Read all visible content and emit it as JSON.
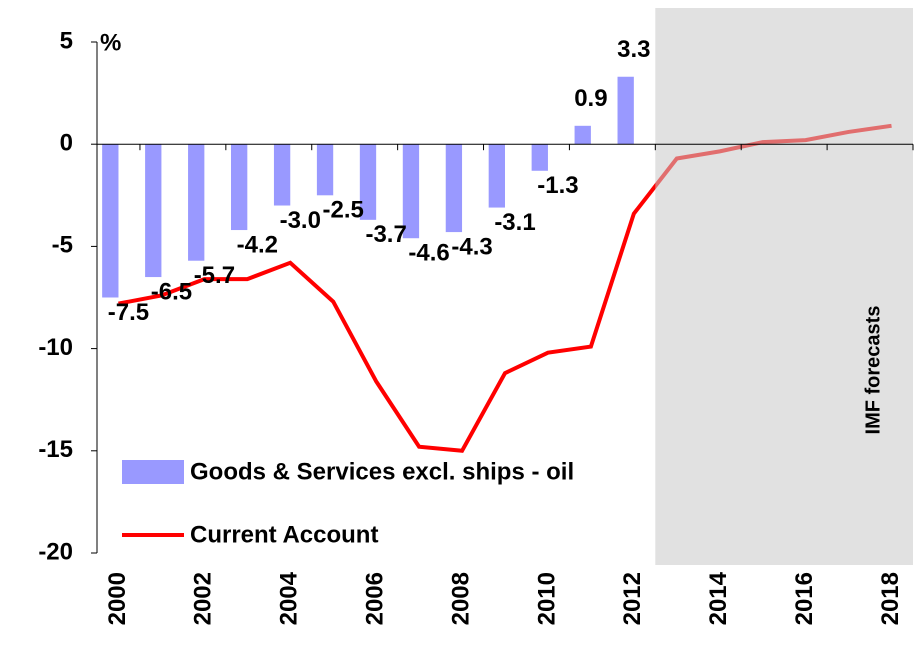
{
  "chart_data": {
    "type": "bar-line",
    "y_label": "%",
    "annotation": "IMF forecasts",
    "forecast_start": 2012.5,
    "xlim": [
      1999.5,
      2018.5
    ],
    "xticks": [
      2000,
      2002,
      2004,
      2006,
      2008,
      2010,
      2012,
      2014,
      2016,
      2018
    ],
    "ylim": [
      -20,
      5
    ],
    "yticks": [
      -20,
      -15,
      -10,
      -5,
      0,
      5
    ],
    "series": [
      {
        "name": "Goods & Services excl. ships - oil",
        "type": "bar",
        "color": "#9999ff",
        "x": [
          2000,
          2001,
          2002,
          2003,
          2004,
          2005,
          2006,
          2007,
          2008,
          2009,
          2010,
          2011,
          2012
        ],
        "values": [
          -7.5,
          -6.5,
          -5.7,
          -4.2,
          -3.0,
          -2.5,
          -3.7,
          -4.6,
          -4.3,
          -3.1,
          -1.3,
          0.9,
          3.3
        ],
        "value_labels": [
          "-7.5",
          "-6.5",
          "-5.7",
          "-4.2",
          "-3.0",
          "-2.5",
          "-3.7",
          "-4.6",
          "-4.3",
          "-3.1",
          "-1.3",
          "0.9",
          "3.3"
        ]
      },
      {
        "name": "Current Account",
        "type": "line",
        "color": "#ff0000",
        "x": [
          2000,
          2001,
          2002,
          2003,
          2004,
          2005,
          2006,
          2007,
          2008,
          2009,
          2010,
          2011,
          2012,
          2013,
          2014,
          2015,
          2016,
          2017,
          2018
        ],
        "values": [
          -7.8,
          -7.4,
          -6.6,
          -6.6,
          -5.8,
          -7.7,
          -11.6,
          -14.8,
          -15.0,
          -11.2,
          -10.2,
          -9.9,
          -3.4,
          -0.7,
          -0.35,
          0.1,
          0.2,
          0.6,
          0.9
        ]
      }
    ]
  }
}
